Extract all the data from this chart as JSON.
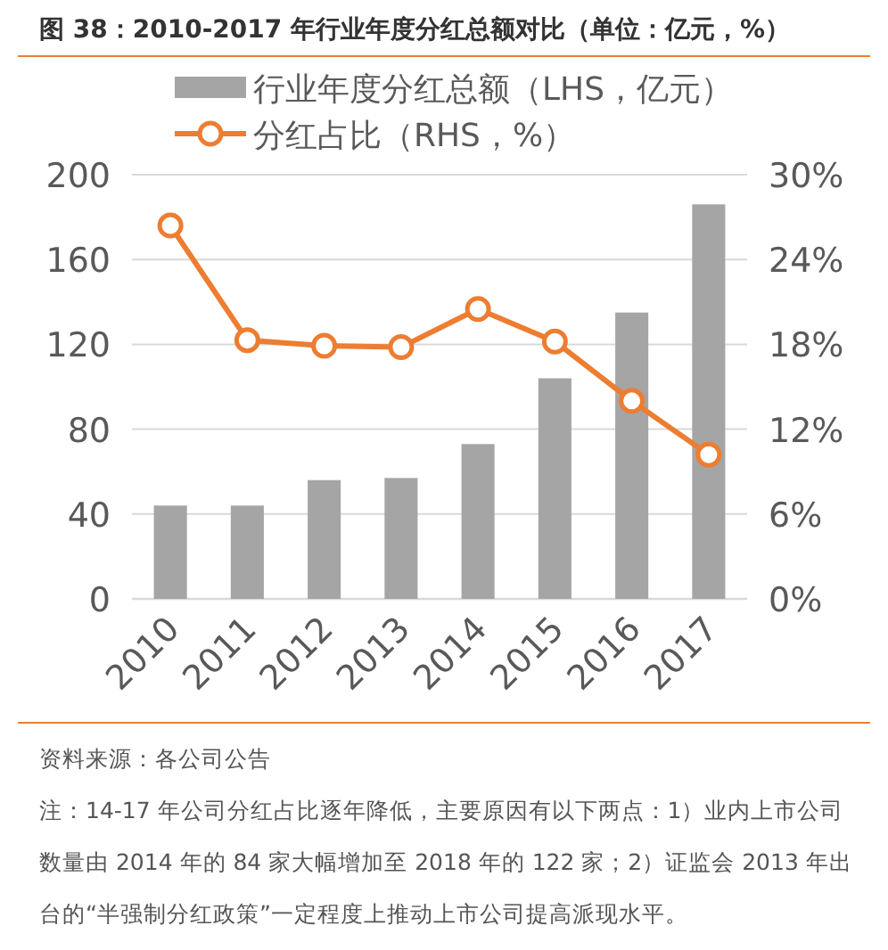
{
  "chart_data": {
    "type": "bar",
    "title": "图 38：2010-2017 年行业年度分红总额对比（单位：亿元，%）",
    "categories": [
      "2010",
      "2011",
      "2012",
      "2013",
      "2014",
      "2015",
      "2016",
      "2017"
    ],
    "series": [
      {
        "name": "行业年度分红总额（LHS，亿元）",
        "color": "#a5a5a5",
        "values": [
          44,
          44,
          56,
          57,
          73,
          104,
          135,
          186
        ]
      },
      {
        "name": "分红占比（RHS，%）",
        "type": "line",
        "axis": "y2",
        "color": "#ed7d31",
        "values": [
          26.4,
          18.3,
          17.9,
          17.8,
          20.5,
          18.2,
          14.0,
          10.2
        ]
      }
    ],
    "ylim": [
      0,
      200
    ],
    "yticks": [
      0,
      40,
      80,
      120,
      160,
      200
    ],
    "y2lim": [
      0,
      30
    ],
    "y2ticks": [
      {
        "value": 0,
        "label": "0%"
      },
      {
        "value": 6,
        "label": "6%"
      },
      {
        "value": 12,
        "label": "12%"
      },
      {
        "value": 18,
        "label": "18%"
      },
      {
        "value": 24,
        "label": "24%"
      },
      {
        "value": 30,
        "label": "30%"
      }
    ],
    "grid": "y",
    "legend": "top",
    "marker": "circle",
    "line_style": "solid",
    "annotations": [
      "资料来源：各公司公告",
      "注：14-17 年公司分红占比逐年降低，主要原因有以下两点：1）业内上市公司数量由 2014 年的 84 家大幅增加至 2018 年的 122 家；2）证监会 2013 年出台的“半强制分红政策”一定程度上推动上市公司提高派现水平。"
    ]
  }
}
